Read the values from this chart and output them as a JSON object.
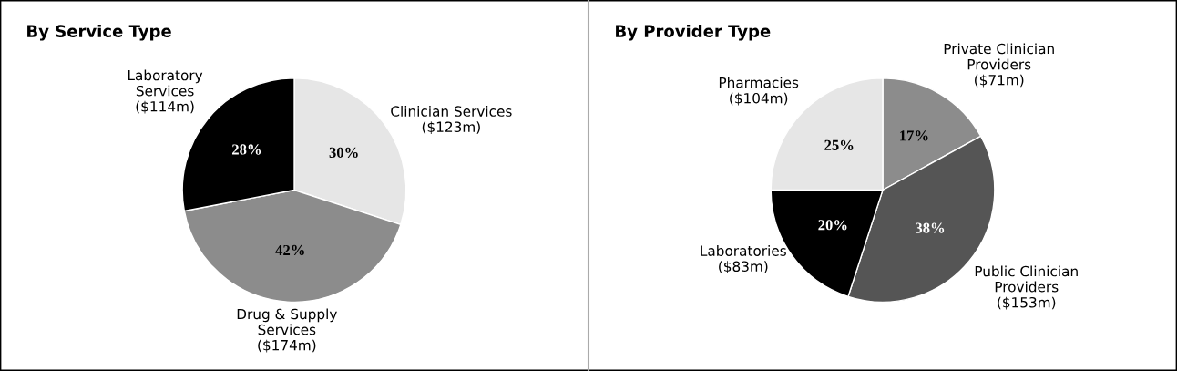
{
  "chart_data": [
    {
      "type": "pie",
      "title": "By Service Type",
      "categories": [
        "Clinician Services\n($123m)",
        "Drug & Supply\nServices\n($174m)",
        "Laboratory\nServices\n($114m)"
      ],
      "values": [
        30,
        42,
        28
      ],
      "colors": [
        "#e6e6e6",
        "#8c8c8c",
        "#000000"
      ],
      "value_labels": [
        "30%",
        "42%",
        "28%"
      ]
    },
    {
      "type": "pie",
      "title": "By Provider Type",
      "categories": [
        "Private Clinician\nProviders\n($71m)",
        "Public Clinician\nProviders\n($153m)",
        "Laboratories\n($83m)",
        "Pharmacies\n($104m)"
      ],
      "values": [
        17,
        38,
        20,
        25
      ],
      "colors": [
        "#8c8c8c",
        "#555555",
        "#000000",
        "#e6e6e6"
      ],
      "value_labels": [
        "17%",
        "38%",
        "20%",
        "25%"
      ]
    }
  ]
}
